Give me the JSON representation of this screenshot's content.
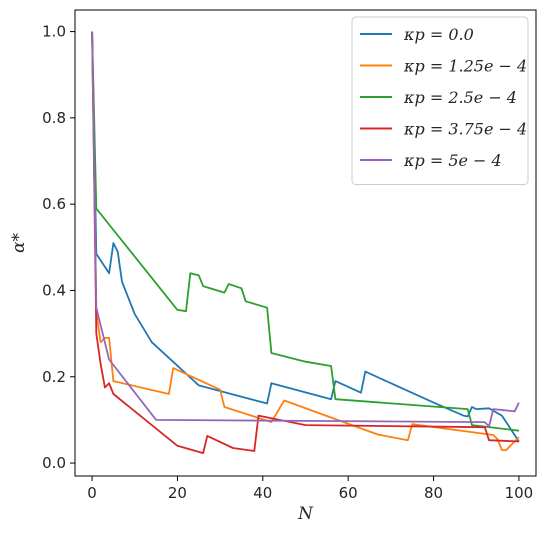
{
  "chart_data": {
    "type": "line",
    "xlabel": "N",
    "ylabel": "α*",
    "xlim": [
      -4,
      104
    ],
    "ylim": [
      -0.03,
      1.05
    ],
    "xticks": [
      0,
      20,
      40,
      60,
      80,
      100
    ],
    "yticks": [
      0.0,
      0.2,
      0.4,
      0.6,
      0.8,
      1.0
    ],
    "xtick_labels": [
      "0",
      "20",
      "40",
      "60",
      "80",
      "100"
    ],
    "ytick_labels": [
      "0.0",
      "0.2",
      "0.4",
      "0.6",
      "0.8",
      "1.0"
    ],
    "grid": false,
    "legend_position": "top-right",
    "series": [
      {
        "name": "κp = 0.0",
        "color": "#1f77b4",
        "x": [
          0,
          1,
          4,
          5,
          6,
          7,
          10,
          14,
          25,
          41,
          42,
          56,
          57,
          63,
          64,
          80,
          87,
          88,
          89,
          90,
          93,
          96,
          100
        ],
        "y": [
          1.0,
          0.485,
          0.44,
          0.51,
          0.49,
          0.42,
          0.345,
          0.28,
          0.18,
          0.138,
          0.185,
          0.148,
          0.19,
          0.163,
          0.212,
          0.14,
          0.11,
          0.108,
          0.13,
          0.125,
          0.127,
          0.11,
          0.05
        ]
      },
      {
        "name": "κp = 1.25e − 4",
        "color": "#ff7f0e",
        "x": [
          0,
          1,
          2,
          3,
          4,
          5,
          18,
          19,
          30,
          31,
          42,
          45,
          67,
          74,
          75,
          94,
          95,
          96,
          97,
          100
        ],
        "y": [
          1.0,
          0.35,
          0.28,
          0.29,
          0.29,
          0.19,
          0.16,
          0.22,
          0.17,
          0.13,
          0.095,
          0.145,
          0.066,
          0.053,
          0.09,
          0.065,
          0.055,
          0.03,
          0.03,
          0.06
        ]
      },
      {
        "name": "κp = 2.5e − 4",
        "color": "#2ca02c",
        "x": [
          0,
          1,
          20,
          22,
          23,
          25,
          26,
          31,
          32,
          35,
          36,
          41,
          42,
          50,
          56,
          57,
          88,
          89,
          100
        ],
        "y": [
          1.0,
          0.59,
          0.355,
          0.352,
          0.44,
          0.435,
          0.41,
          0.395,
          0.415,
          0.405,
          0.375,
          0.36,
          0.255,
          0.235,
          0.225,
          0.148,
          0.125,
          0.088,
          0.075
        ]
      },
      {
        "name": "κp = 3.75e − 4",
        "color": "#d62728",
        "x": [
          0,
          1,
          2,
          3,
          4,
          5,
          20,
          26,
          27,
          33,
          38,
          39,
          50,
          92,
          93,
          100
        ],
        "y": [
          1.0,
          0.3,
          0.23,
          0.175,
          0.185,
          0.16,
          0.04,
          0.023,
          0.063,
          0.035,
          0.028,
          0.11,
          0.088,
          0.083,
          0.053,
          0.05
        ]
      },
      {
        "name": "κp = 5e − 4",
        "color": "#9467bd",
        "x": [
          0,
          1,
          4,
          15,
          92,
          93,
          94,
          99,
          100
        ],
        "y": [
          1.0,
          0.36,
          0.24,
          0.1,
          0.095,
          0.085,
          0.125,
          0.12,
          0.14
        ]
      }
    ]
  }
}
